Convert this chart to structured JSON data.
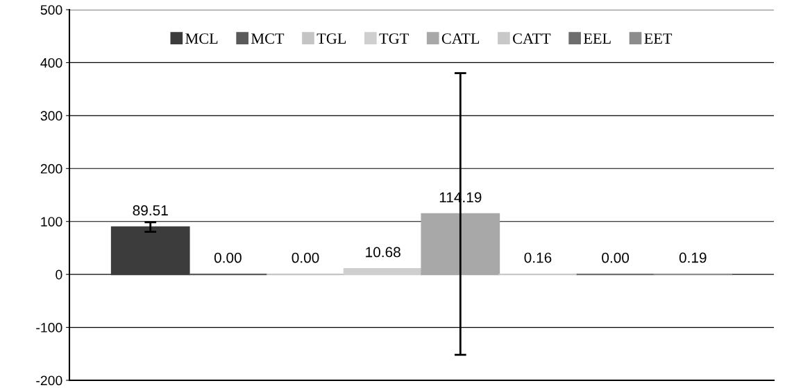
{
  "chart_data": {
    "type": "bar",
    "categories": [
      null
    ],
    "series": [
      {
        "name": "MCL",
        "color": "#3c3c3c",
        "values": [
          89.51
        ],
        "errors": [
          9
        ],
        "value_labels": [
          "89.51"
        ]
      },
      {
        "name": "MCT",
        "color": "#5a5a5a",
        "values": [
          0.0
        ],
        "value_labels": [
          "0.00"
        ]
      },
      {
        "name": "TGL",
        "color": "#c4c4c4",
        "values": [
          0.0
        ],
        "value_labels": [
          "0.00"
        ]
      },
      {
        "name": "TGT",
        "color": "#cfcfcf",
        "values": [
          10.68
        ],
        "value_labels": [
          "10.68"
        ]
      },
      {
        "name": "CATL",
        "color": "#a8a8a8",
        "values": [
          114.19
        ],
        "errors": [
          266
        ],
        "value_labels": [
          "114.19"
        ]
      },
      {
        "name": "CATT",
        "color": "#c8c8c8",
        "values": [
          0.16
        ],
        "value_labels": [
          "0.16"
        ]
      },
      {
        "name": "EEL",
        "color": "#6e6e6e",
        "values": [
          0.0
        ],
        "value_labels": [
          "0.00"
        ]
      },
      {
        "name": "EET",
        "color": "#8c8c8c",
        "values": [
          0.19
        ],
        "value_labels": [
          "0.19"
        ]
      }
    ],
    "ylim": [
      -200,
      500
    ],
    "yticks": [
      -200,
      -100,
      0,
      100,
      200,
      300,
      400,
      500
    ],
    "grid": "y",
    "legend": "top"
  }
}
